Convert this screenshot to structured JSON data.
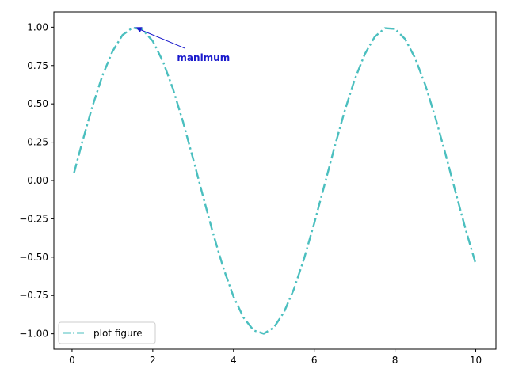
{
  "chart_data": {
    "type": "line",
    "title": "",
    "xlabel": "",
    "ylabel": "",
    "xlim": [
      -0.45,
      10.5
    ],
    "ylim": [
      -1.1,
      1.1
    ],
    "xticks": [
      0,
      2,
      4,
      6,
      8,
      10
    ],
    "xtick_labels": [
      "0",
      "2",
      "4",
      "6",
      "8",
      "10"
    ],
    "yticks": [
      -1.0,
      -0.75,
      -0.5,
      -0.25,
      0.0,
      0.25,
      0.5,
      0.75,
      1.0
    ],
    "ytick_labels": [
      "−1.00",
      "−0.75",
      "−0.50",
      "−0.25",
      "0.00",
      "0.25",
      "0.50",
      "0.75",
      "1.00"
    ],
    "grid": false,
    "legend_position": "lower-left",
    "series": [
      {
        "name": "plot figure",
        "color": "#4bbfbf",
        "line_style": "dash-dot",
        "x": [
          0.05,
          0.25,
          0.5,
          0.75,
          1.0,
          1.25,
          1.5,
          1.75,
          2.0,
          2.25,
          2.5,
          2.75,
          3.0,
          3.25,
          3.5,
          3.75,
          4.0,
          4.25,
          4.5,
          4.75,
          5.0,
          5.25,
          5.5,
          5.75,
          6.0,
          6.25,
          6.5,
          6.75,
          7.0,
          7.25,
          7.5,
          7.75,
          8.0,
          8.25,
          8.5,
          8.75,
          9.0,
          9.25,
          9.5,
          9.75,
          10.0
        ],
        "y": [
          0.05,
          0.247,
          0.479,
          0.682,
          0.841,
          0.949,
          0.997,
          0.984,
          0.909,
          0.778,
          0.598,
          0.382,
          0.141,
          -0.108,
          -0.351,
          -0.572,
          -0.757,
          -0.895,
          -0.978,
          -0.999,
          -0.959,
          -0.859,
          -0.706,
          -0.508,
          -0.279,
          -0.033,
          0.215,
          0.45,
          0.657,
          0.823,
          0.938,
          0.994,
          0.989,
          0.923,
          0.798,
          0.624,
          0.412,
          0.174,
          -0.075,
          -0.319,
          -0.544
        ]
      }
    ],
    "annotations": [
      {
        "text": "manimum",
        "color": "#1a1acc",
        "point": [
          1.57,
          1.0
        ],
        "text_pos": [
          2.6,
          0.8
        ]
      }
    ]
  }
}
